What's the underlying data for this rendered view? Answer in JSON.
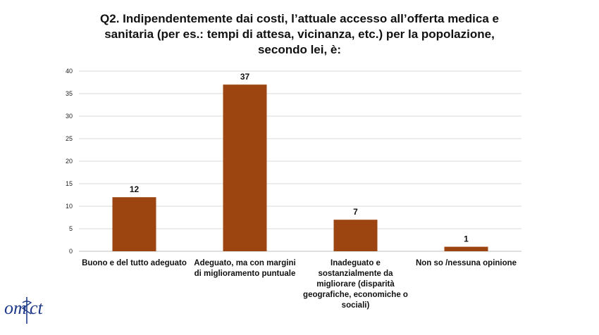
{
  "chart_data": {
    "type": "bar",
    "title": "Q2. Indipendentemente dai costi, l’attuale accesso all’offerta medica e sanitaria (per es.: tempi di attesa, vicinanza, etc.) per la popolazione, secondo lei, è:",
    "categories": [
      "Buono e del tutto adeguato",
      "Adeguato, ma con margini di miglioramento puntuale",
      "Inadeguato e sostanzialmente da migliorare (disparità geografiche, economiche o sociali)",
      "Non so /nessuna opinione"
    ],
    "values": [
      12,
      37,
      7,
      1
    ],
    "ylim": [
      0,
      40
    ],
    "yticks": [
      "0",
      "5",
      "10",
      "15",
      "20",
      "25",
      "30",
      "35",
      "40"
    ],
    "xlabel": "",
    "ylabel": "",
    "grid": true,
    "legend": "none",
    "bar_color": "#9C4511"
  },
  "logo": {
    "name": "omct-logo",
    "text": "omct"
  }
}
